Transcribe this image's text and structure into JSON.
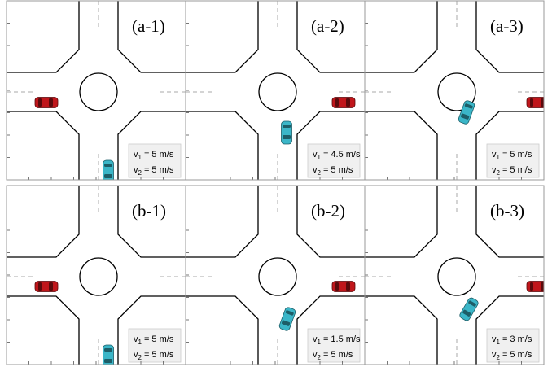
{
  "panels": [
    {
      "label": "(a-1)",
      "speeds": [
        {
          "symbol": "v",
          "subscript": "1",
          "value": "= 5 m/s"
        },
        {
          "symbol": "v",
          "subscript": "2",
          "value": "= 5 m/s"
        }
      ]
    },
    {
      "label": "(a-2)",
      "speeds": [
        {
          "symbol": "v",
          "subscript": "1",
          "value": "= 4.5 m/s"
        },
        {
          "symbol": "v",
          "subscript": "2",
          "value": "= 5 m/s"
        }
      ]
    },
    {
      "label": "(a-3)",
      "speeds": [
        {
          "symbol": "v",
          "subscript": "1",
          "value": "= 5 m/s"
        },
        {
          "symbol": "v",
          "subscript": "2",
          "value": "= 5 m/s"
        }
      ]
    },
    {
      "label": "(b-1)",
      "speeds": [
        {
          "symbol": "v",
          "subscript": "1",
          "value": "= 5 m/s"
        },
        {
          "symbol": "v",
          "subscript": "2",
          "value": "= 5 m/s"
        }
      ]
    },
    {
      "label": "(b-2)",
      "speeds": [
        {
          "symbol": "v",
          "subscript": "1",
          "value": "= 1.5 m/s"
        },
        {
          "symbol": "v",
          "subscript": "2",
          "value": "= 5 m/s"
        }
      ]
    },
    {
      "label": "(b-3)",
      "speeds": [
        {
          "symbol": "v",
          "subscript": "1",
          "value": "= 3 m/s"
        },
        {
          "symbol": "v",
          "subscript": "2",
          "value": "= 5 m/s"
        }
      ]
    }
  ]
}
